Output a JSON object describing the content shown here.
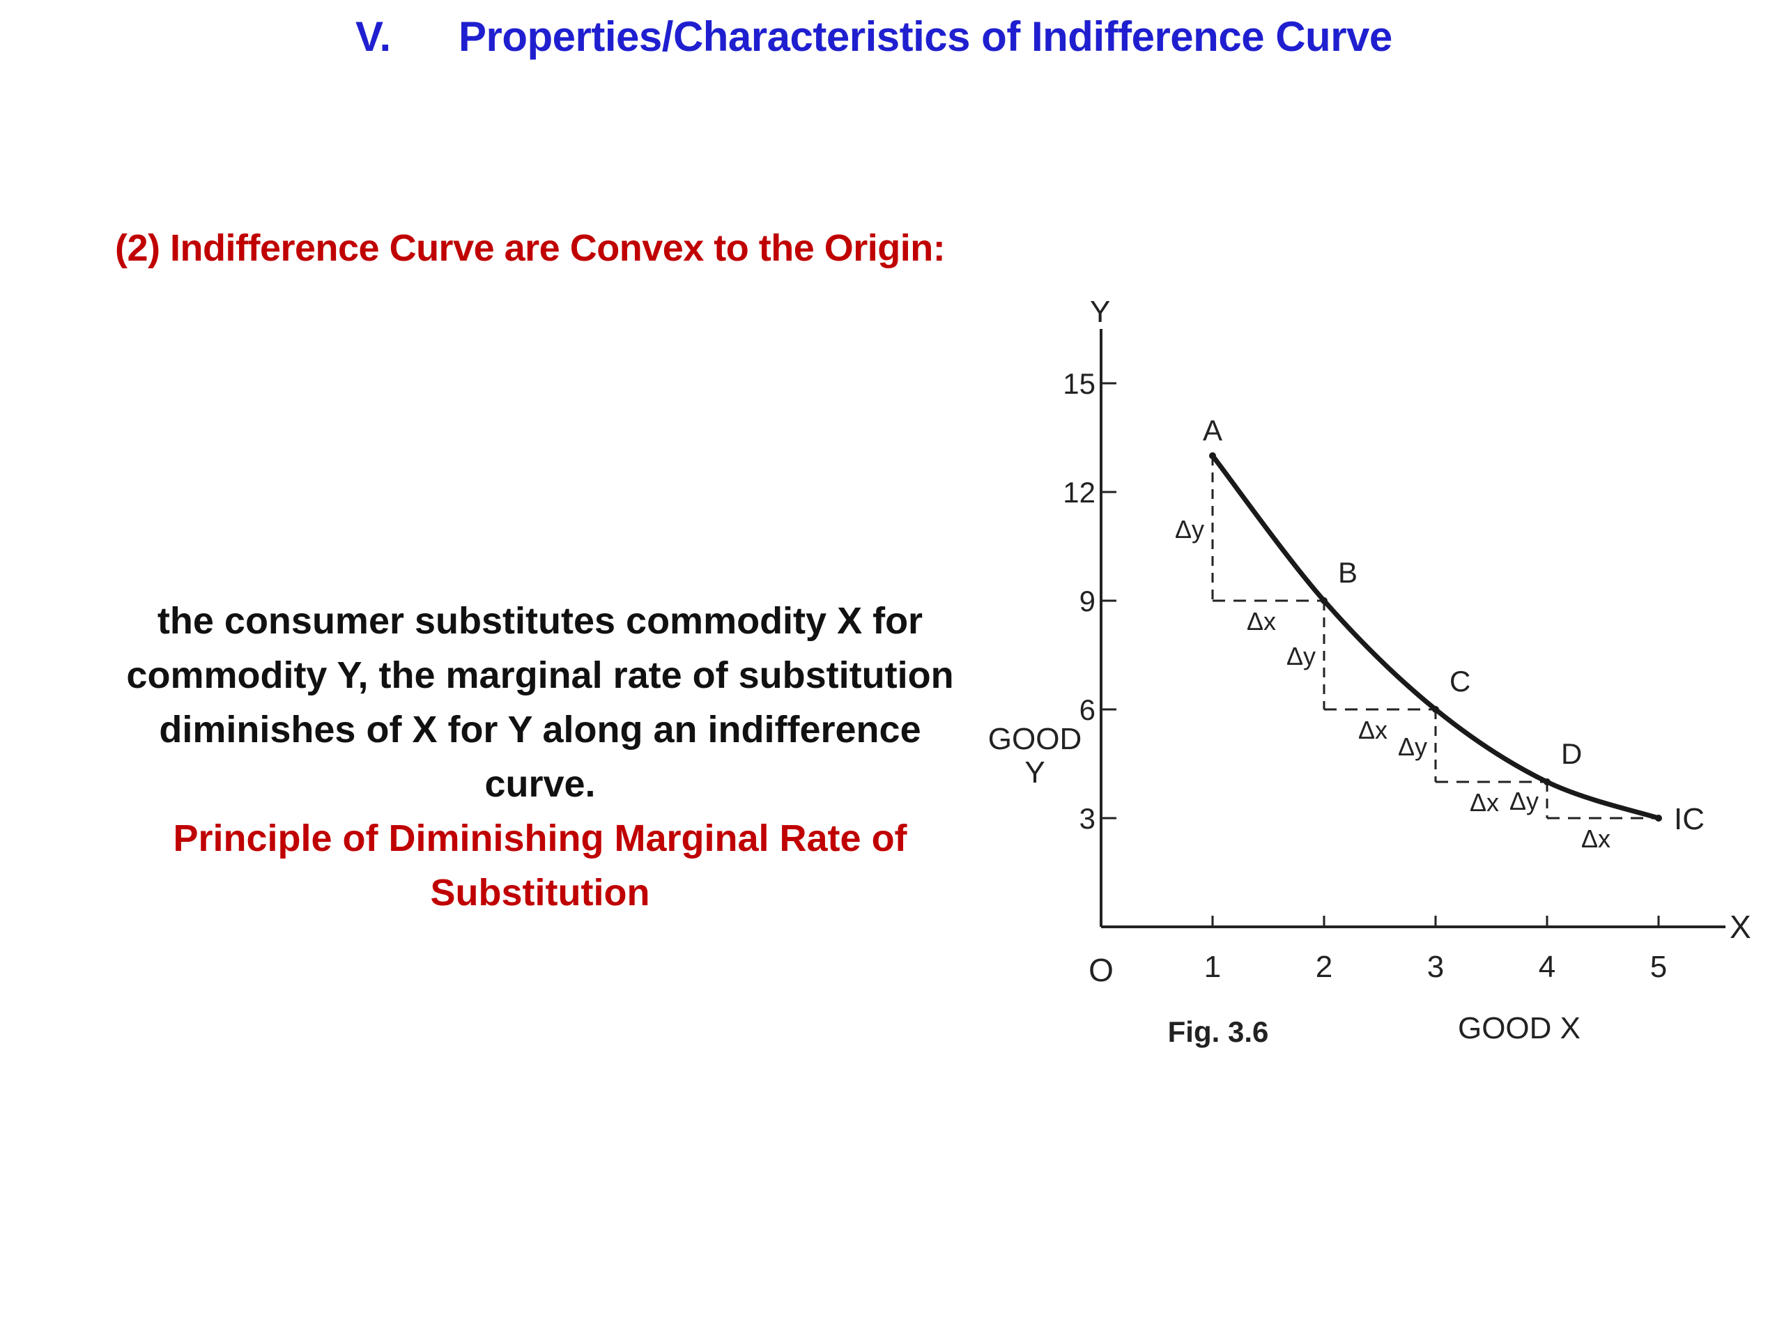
{
  "slide": {
    "title_number": "V.",
    "title_text": "Properties/Characteristics of Indifference Curve",
    "subtitle": "(2) Indifference Curve are Convex to the Origin:",
    "body_lines": [
      "the consumer substitutes commodity X for",
      "commodity Y, the marginal rate of substitution",
      "diminishes of X for Y along an indifference",
      "curve."
    ],
    "principle_lines": [
      "Principle of Diminishing Marginal Rate of",
      "Substitution"
    ],
    "colors": {
      "title": "#1f1fd0",
      "subtitle": "#c00000",
      "body": "#111111",
      "principle": "#c00000"
    }
  },
  "chart_data": {
    "type": "line",
    "xlabel": "GOOD X",
    "ylabel": [
      "GOOD",
      "Y"
    ],
    "x_axis_letter": "X",
    "y_axis_letter": "Y",
    "origin_label": "O",
    "caption": "Fig. 3.6",
    "curve_label": "IC",
    "xlim": [
      0,
      5.6
    ],
    "ylim": [
      0,
      16.5
    ],
    "xticks": [
      1,
      2,
      3,
      4,
      5
    ],
    "yticks": [
      3,
      6,
      9,
      12,
      15
    ],
    "points": [
      {
        "label": "A",
        "x": 1,
        "y": 13
      },
      {
        "label": "B",
        "x": 2,
        "y": 9
      },
      {
        "label": "C",
        "x": 3,
        "y": 6
      },
      {
        "label": "D",
        "x": 4,
        "y": 4
      },
      {
        "label": "",
        "x": 5,
        "y": 3
      }
    ],
    "delta_y_label": "Δy",
    "delta_x_label": "Δx",
    "grid": false,
    "legend": "none"
  }
}
